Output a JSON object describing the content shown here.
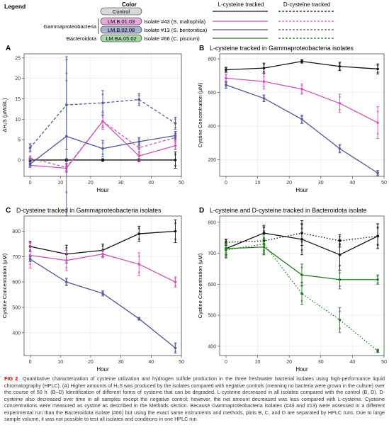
{
  "legend": {
    "title": "Legend",
    "color_header": "Color",
    "control_label": "Control",
    "groups": [
      {
        "name": "Gammaproteobacteria",
        "isolates": [
          {
            "tag": "LM.B.01.03",
            "label": "Isolate #43 (S. maltophila)",
            "color": "#cc55bb"
          },
          {
            "tag": "LM.B.02.08",
            "label": "Isolate #13 (S. bentonitica)",
            "color": "#4f5a96"
          }
        ]
      },
      {
        "name": "Bacteroidota",
        "isolates": [
          {
            "tag": "LM.BA.05.02",
            "label": "Isolate #66 (C. piscium)",
            "color": "#1f7a1f"
          }
        ]
      }
    ],
    "l_header": "L-cysteine tracked",
    "d_header": "D-cysteine tracked"
  },
  "colors": {
    "control": "#111111",
    "iso43": "#cc55bb",
    "iso13": "#4f5a96",
    "iso66": "#1f7a1f"
  },
  "panels": {
    "A": {
      "letter": "A",
      "title": "",
      "xlabel": "Hour",
      "ylabel": "ΔH₂S (μMol/L)"
    },
    "B": {
      "letter": "B",
      "title": "L-cysteine tracked in Gammaproteobacteria isolates",
      "xlabel": "Hour",
      "ylabel": "Cystine Concentration (μM)"
    },
    "C": {
      "letter": "C",
      "title": "D-cysteine tracked in Gammaproteobacteria isolates",
      "xlabel": "Hour",
      "ylabel": "Cystine Concentration (μM)"
    },
    "D": {
      "letter": "D",
      "title": "L-cysteine and D-cysteine tracked in Bacteroidota isolate",
      "xlabel": "Hour",
      "ylabel": "Cystine Concentration (μM)"
    }
  },
  "chart_data": [
    {
      "panel": "A",
      "type": "line",
      "x": [
        0,
        12,
        24,
        36,
        48
      ],
      "xlim": [
        -2,
        50
      ],
      "ylim": [
        -4,
        26
      ],
      "xticks": [
        0,
        10,
        20,
        30,
        40,
        50
      ],
      "yticks": [
        0,
        5,
        10,
        15,
        20,
        25
      ],
      "series": [
        {
          "key": "control",
          "dashed": false,
          "values": [
            0,
            0,
            0,
            0,
            0
          ],
          "err": [
            0.3,
            0.3,
            0.3,
            0.3,
            2
          ]
        },
        {
          "key": "iso43",
          "dashed": false,
          "values": [
            -1.3,
            -2.0,
            9.5,
            1.0,
            3.5
          ],
          "err": [
            0.5,
            1.0,
            2.0,
            1.5,
            1.0
          ]
        },
        {
          "key": "iso43",
          "dashed": true,
          "values": [
            0.5,
            -1.8,
            9.5,
            3.0,
            5.5
          ],
          "err": [
            0.5,
            1.0,
            1.5,
            1.5,
            1.0
          ]
        },
        {
          "key": "iso13",
          "dashed": false,
          "values": [
            -1.0,
            5.8,
            2.8,
            4.5,
            6.0
          ],
          "err": [
            0.5,
            19.5,
            2.0,
            1.0,
            1.0
          ]
        },
        {
          "key": "iso13",
          "dashed": true,
          "values": [
            3.0,
            13.5,
            14.0,
            14.8,
            9.0
          ],
          "err": [
            1.0,
            11.0,
            3.0,
            1.5,
            1.5
          ]
        }
      ]
    },
    {
      "panel": "B",
      "type": "line",
      "x": [
        0,
        12,
        24,
        36,
        48
      ],
      "xlim": [
        -2,
        50
      ],
      "ylim": [
        100,
        830
      ],
      "xticks": [
        0,
        10,
        20,
        30,
        40,
        50
      ],
      "yticks": [
        200,
        400,
        600,
        800
      ],
      "series": [
        {
          "key": "control",
          "dashed": false,
          "values": [
            735,
            745,
            785,
            755,
            740
          ],
          "err": [
            15,
            30,
            10,
            25,
            30
          ]
        },
        {
          "key": "iso43",
          "dashed": false,
          "values": [
            685,
            665,
            620,
            535,
            420
          ],
          "err": [
            25,
            45,
            30,
            55,
            95
          ]
        },
        {
          "key": "iso13",
          "dashed": false,
          "values": [
            645,
            565,
            440,
            265,
            120
          ],
          "err": [
            20,
            20,
            25,
            25,
            15
          ]
        }
      ]
    },
    {
      "panel": "C",
      "type": "line",
      "x": [
        0,
        12,
        24,
        36,
        48
      ],
      "xlim": [
        -2,
        50
      ],
      "ylim": [
        310,
        860
      ],
      "xticks": [
        0,
        10,
        20,
        30,
        40,
        50
      ],
      "yticks": [
        400,
        500,
        600,
        700,
        800
      ],
      "series": [
        {
          "key": "control",
          "dashed": false,
          "values": [
            740,
            710,
            725,
            790,
            800
          ],
          "err": [
            20,
            35,
            25,
            30,
            45
          ]
        },
        {
          "key": "iso43",
          "dashed": false,
          "values": [
            705,
            685,
            710,
            670,
            600
          ],
          "err": [
            50,
            40,
            15,
            45,
            20
          ]
        },
        {
          "key": "iso13",
          "dashed": false,
          "values": [
            690,
            600,
            555,
            455,
            340
          ],
          "err": [
            10,
            15,
            10,
            5,
            20
          ]
        }
      ]
    },
    {
      "panel": "D",
      "type": "line",
      "x": [
        0,
        12,
        24,
        36,
        48
      ],
      "xlim": [
        -2,
        50
      ],
      "ylim": [
        370,
        820
      ],
      "xticks": [
        0,
        10,
        20,
        30,
        40,
        50
      ],
      "yticks": [
        400,
        500,
        600,
        700,
        800
      ],
      "series": [
        {
          "key": "control",
          "dashed": false,
          "values": [
            715,
            765,
            745,
            695,
            755
          ],
          "err": [
            30,
            25,
            50,
            50,
            40
          ]
        },
        {
          "key": "control",
          "dashed": true,
          "values": [
            735,
            740,
            765,
            740,
            755
          ],
          "err": [
            10,
            45,
            40,
            20,
            40
          ]
        },
        {
          "key": "iso66",
          "dashed": false,
          "values": [
            715,
            720,
            630,
            615,
            615
          ],
          "err": [
            20,
            25,
            35,
            30,
            15
          ]
        },
        {
          "key": "iso66",
          "dashed": true,
          "values": [
            710,
            730,
            570,
            485,
            385
          ],
          "err": [
            20,
            30,
            35,
            40,
            5
          ]
        }
      ]
    }
  ],
  "caption": {
    "label": "FIG 2",
    "text": "Quantitative characterization of cysteine utilization and hydrogen sulfide production in the three freshwater bacterial isolates using high-performance liquid chromatography (HPLC). (A) Higher amounts of H₂S was produced by the isolates compared with negative controls (meaning no bacteria were grown in the culture) over the course of 50 h. (B–D) Identification of different forms of cysteine that can be degraded. L-cysteine decreased in all isolates compared with the control (B, D). D-cysteine also decreased over time in all samples except the negative control; however, the net amount decreased was less compared with L-cysteine. Cysteine concentrations were measured as cystine as described in the Methods section. Because Gammaproteobacteria isolates (#43 and #13) were assessed in a different experimental run than the Bacteroidota isolate (#66) but using the exact same instruments and methods, plots B, C, and D are separated by HPLC runs. Due to large sample volume, it was not possible to test all isolates and conditions in one HPLC run."
  }
}
